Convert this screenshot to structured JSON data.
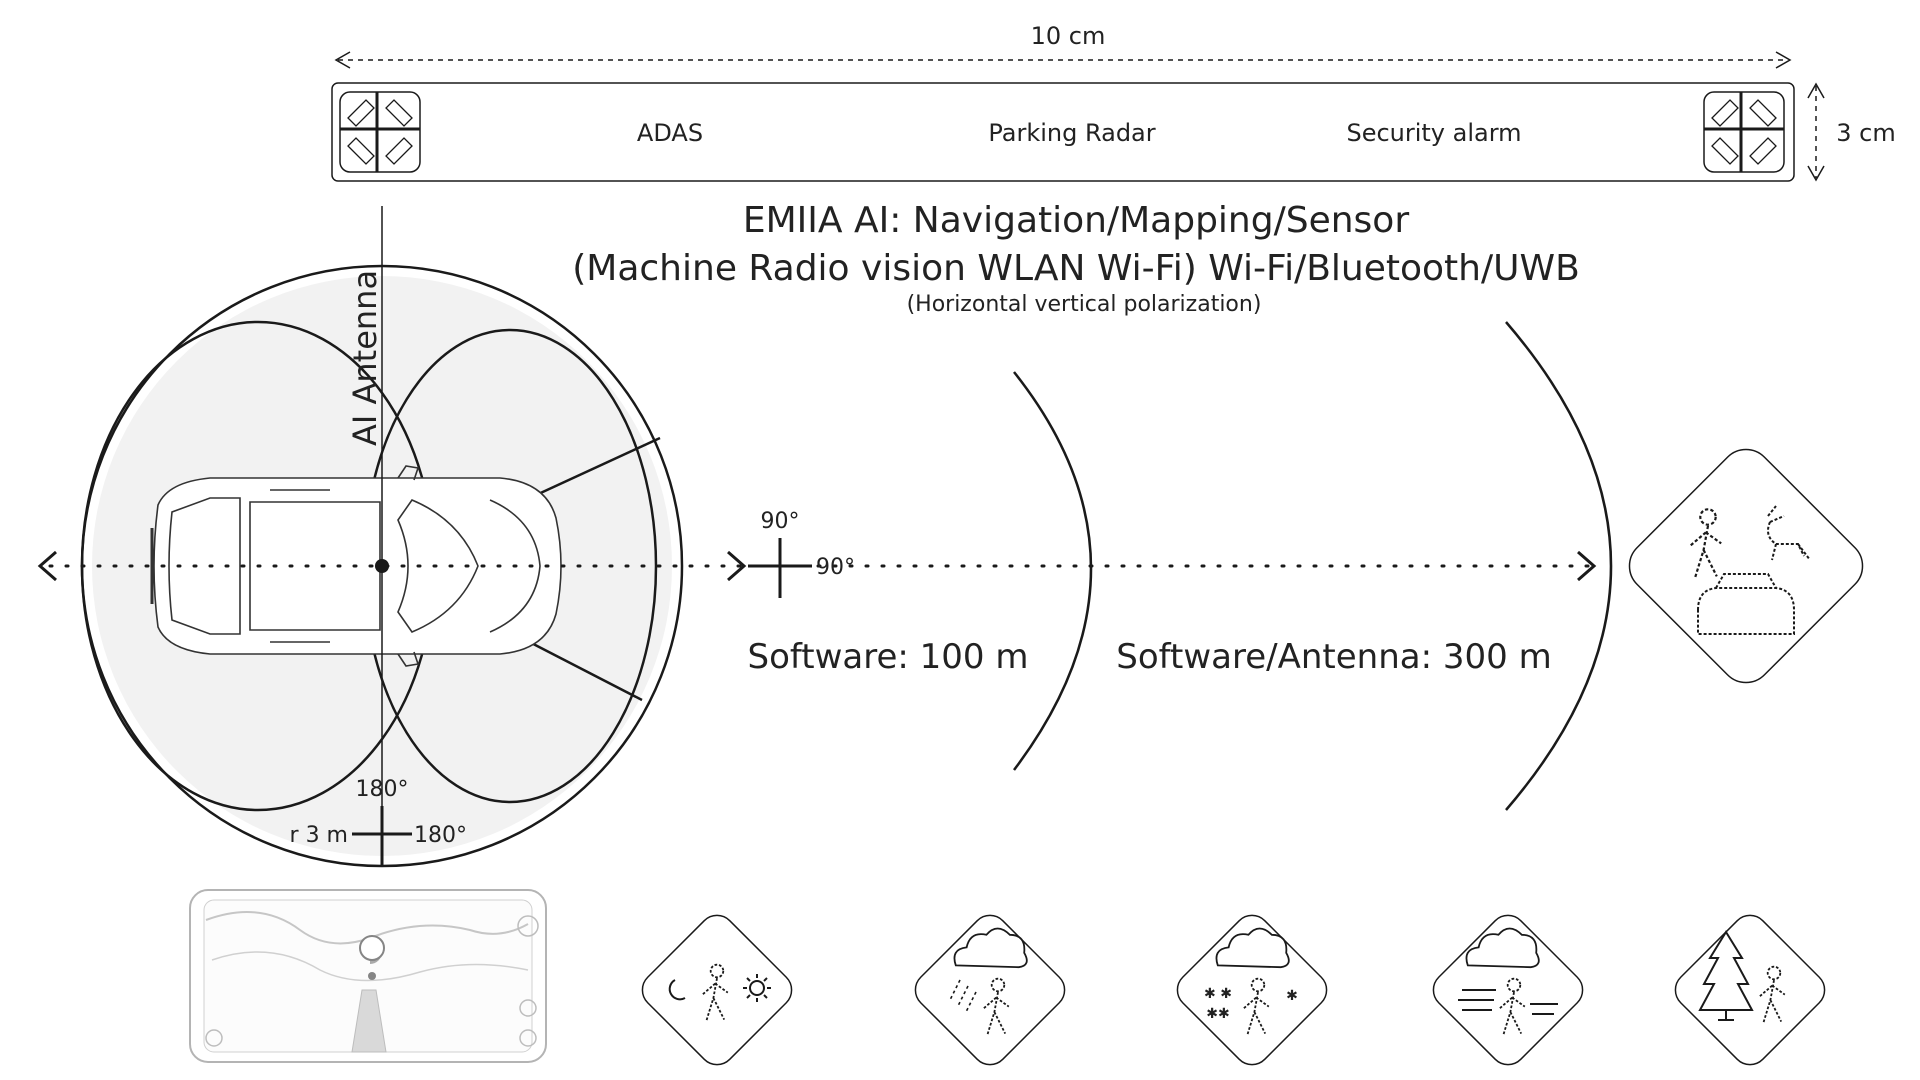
{
  "device": {
    "width_label": "10 cm",
    "height_label": "3 cm",
    "features": [
      "ADAS",
      "Parking Radar",
      "Security alarm"
    ]
  },
  "title": {
    "line1": "EMIIA AI: Navigation/Mapping/Sensor",
    "line2": "(Machine Radio vision WLAN Wi-Fi) Wi-Fi/Bluetooth/UWB",
    "line3": "(Horizontal vertical polarization)"
  },
  "antenna_label": "AI Antenna",
  "angles": {
    "front_top": "90°",
    "front_right": "90°",
    "bottom_top": "180°",
    "bottom_right": "180°",
    "radius": "r 3 m"
  },
  "ranges": {
    "software": "Software: 100 m",
    "software_antenna": "Software/Antenna: 300 m"
  },
  "icons": [
    "night-day-pedestrian-icon",
    "rain-pedestrian-icon",
    "snow-pedestrian-icon",
    "fog-pedestrian-icon",
    "tree-pedestrian-icon",
    "pedestrian-animal-car-icon",
    "phone-navigation-map-icon"
  ]
}
